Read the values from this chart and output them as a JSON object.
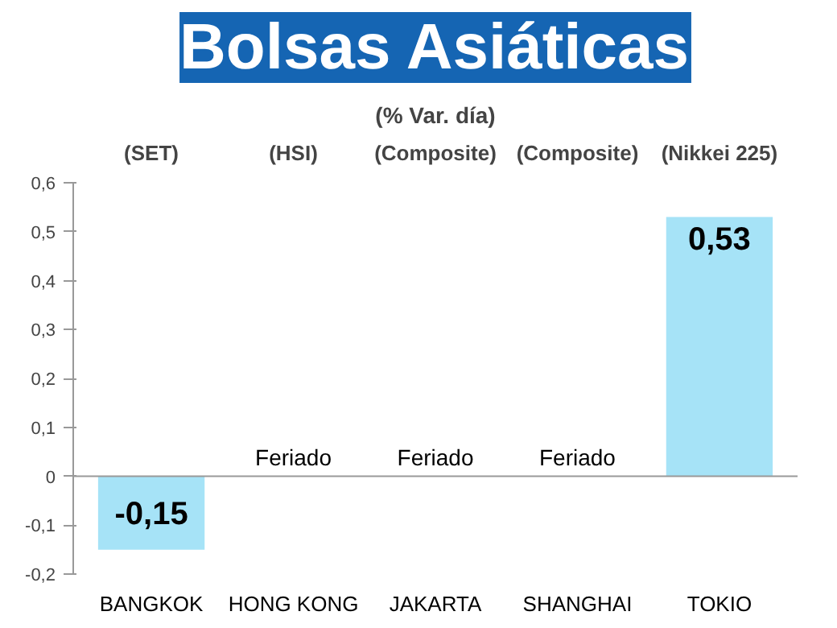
{
  "chart_data": {
    "type": "bar",
    "title": "Bolsas Asiáticas",
    "subtitle": "(% Var. día)",
    "categories": [
      "BANGKOK",
      "HONG KONG",
      "JAKARTA",
      "SHANGHAI",
      "TOKIO"
    ],
    "values": [
      -0.15,
      null,
      null,
      null,
      0.53
    ],
    "value_labels": [
      "-0,15",
      "Feriado",
      "Feriado",
      "Feriado",
      "0,53"
    ],
    "color": "#a6e3f7",
    "ylim": [
      -0.2,
      0.6
    ],
    "yticks": [
      {
        "value": -0.2,
        "label": "-0,2"
      },
      {
        "value": -0.1,
        "label": "-0,1"
      },
      0,
      {
        "value": 0.1,
        "label": "0,1"
      },
      {
        "value": 0.2,
        "label": "0,2"
      },
      {
        "value": 0.3,
        "label": "0,3"
      },
      {
        "value": 0.4,
        "label": "0,4"
      },
      {
        "value": 0.5,
        "label": "0,5"
      },
      {
        "value": 0.6,
        "label": "0,6"
      }
    ],
    "ref_lines": [
      {
        "axis": "y",
        "value": 0,
        "color": "#999999"
      }
    ],
    "annotations": [
      "(SET)",
      "(HSI)",
      "(Composite)",
      "(Composite)",
      "(Nikkei 225)"
    ]
  }
}
